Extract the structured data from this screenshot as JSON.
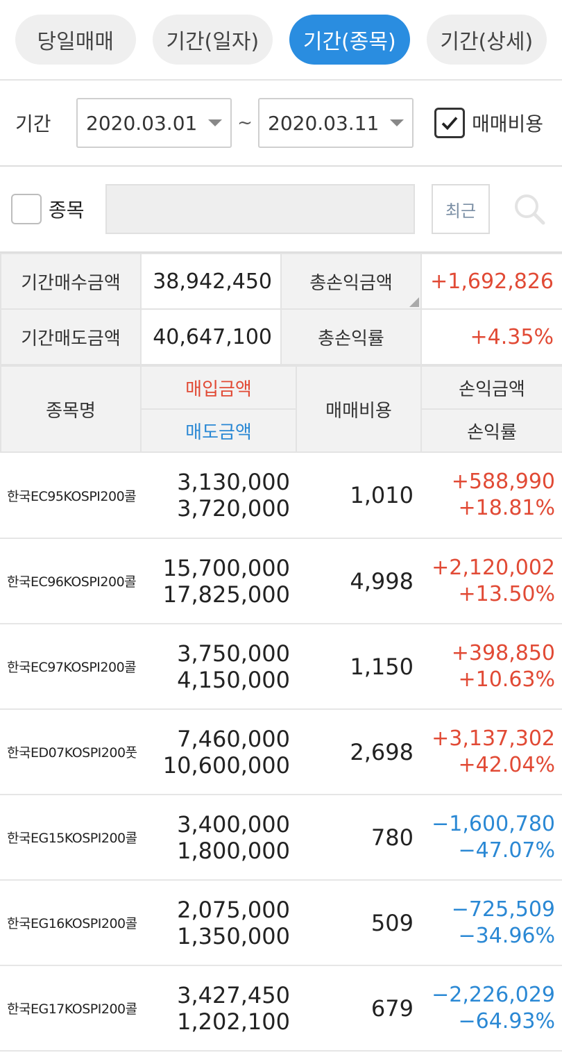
{
  "tabs": [
    {
      "label": "당일매매",
      "active": false
    },
    {
      "label": "기간(일자)",
      "active": false
    },
    {
      "label": "기간(종목)",
      "active": true
    },
    {
      "label": "기간(상세)",
      "active": false
    }
  ],
  "period": {
    "label": "기간",
    "start_date": "2020.03.01",
    "separator": "~",
    "end_date": "2020.03.11",
    "fee_checkbox_label": "매매비용",
    "fee_checked": true
  },
  "search": {
    "checkbox_label": "종목",
    "input_value": "",
    "recent_button": "최근"
  },
  "summary": {
    "buy_total_label": "기간매수금액",
    "buy_total": "38,942,450",
    "sell_total_label": "기간매도금액",
    "sell_total": "40,647,100",
    "pl_total_label": "총손익금액",
    "pl_total": "+1,692,826",
    "pl_rate_label": "총손익률",
    "pl_rate": "+4.35%"
  },
  "table_header": {
    "name": "종목명",
    "buy_amount": "매입금액",
    "sell_amount": "매도금액",
    "fee": "매매비용",
    "pl_amount": "손익금액",
    "pl_rate": "손익률"
  },
  "rows": [
    {
      "name": "한국EC95KOSPI200콜",
      "buy": "3,130,000",
      "sell": "3,720,000",
      "fee": "1,010",
      "pl": "+588,990",
      "rate": "+18.81%",
      "sign": "pos"
    },
    {
      "name": "한국EC96KOSPI200콜",
      "buy": "15,700,000",
      "sell": "17,825,000",
      "fee": "4,998",
      "pl": "+2,120,002",
      "rate": "+13.50%",
      "sign": "pos"
    },
    {
      "name": "한국EC97KOSPI200콜",
      "buy": "3,750,000",
      "sell": "4,150,000",
      "fee": "1,150",
      "pl": "+398,850",
      "rate": "+10.63%",
      "sign": "pos"
    },
    {
      "name": "한국ED07KOSPI200풋",
      "buy": "7,460,000",
      "sell": "10,600,000",
      "fee": "2,698",
      "pl": "+3,137,302",
      "rate": "+42.04%",
      "sign": "pos"
    },
    {
      "name": "한국EG15KOSPI200콜",
      "buy": "3,400,000",
      "sell": "1,800,000",
      "fee": "780",
      "pl": "−1,600,780",
      "rate": "−47.07%",
      "sign": "neg"
    },
    {
      "name": "한국EG16KOSPI200콜",
      "buy": "2,075,000",
      "sell": "1,350,000",
      "fee": "509",
      "pl": "−725,509",
      "rate": "−34.96%",
      "sign": "neg"
    },
    {
      "name": "한국EG17KOSPI200콜",
      "buy": "3,427,450",
      "sell": "1,202,100",
      "fee": "679",
      "pl": "−2,226,029",
      "rate": "−64.93%",
      "sign": "neg"
    }
  ],
  "colors": {
    "accent": "#2a8de0",
    "positive": "#e14a35",
    "negative": "#2a88d4"
  }
}
